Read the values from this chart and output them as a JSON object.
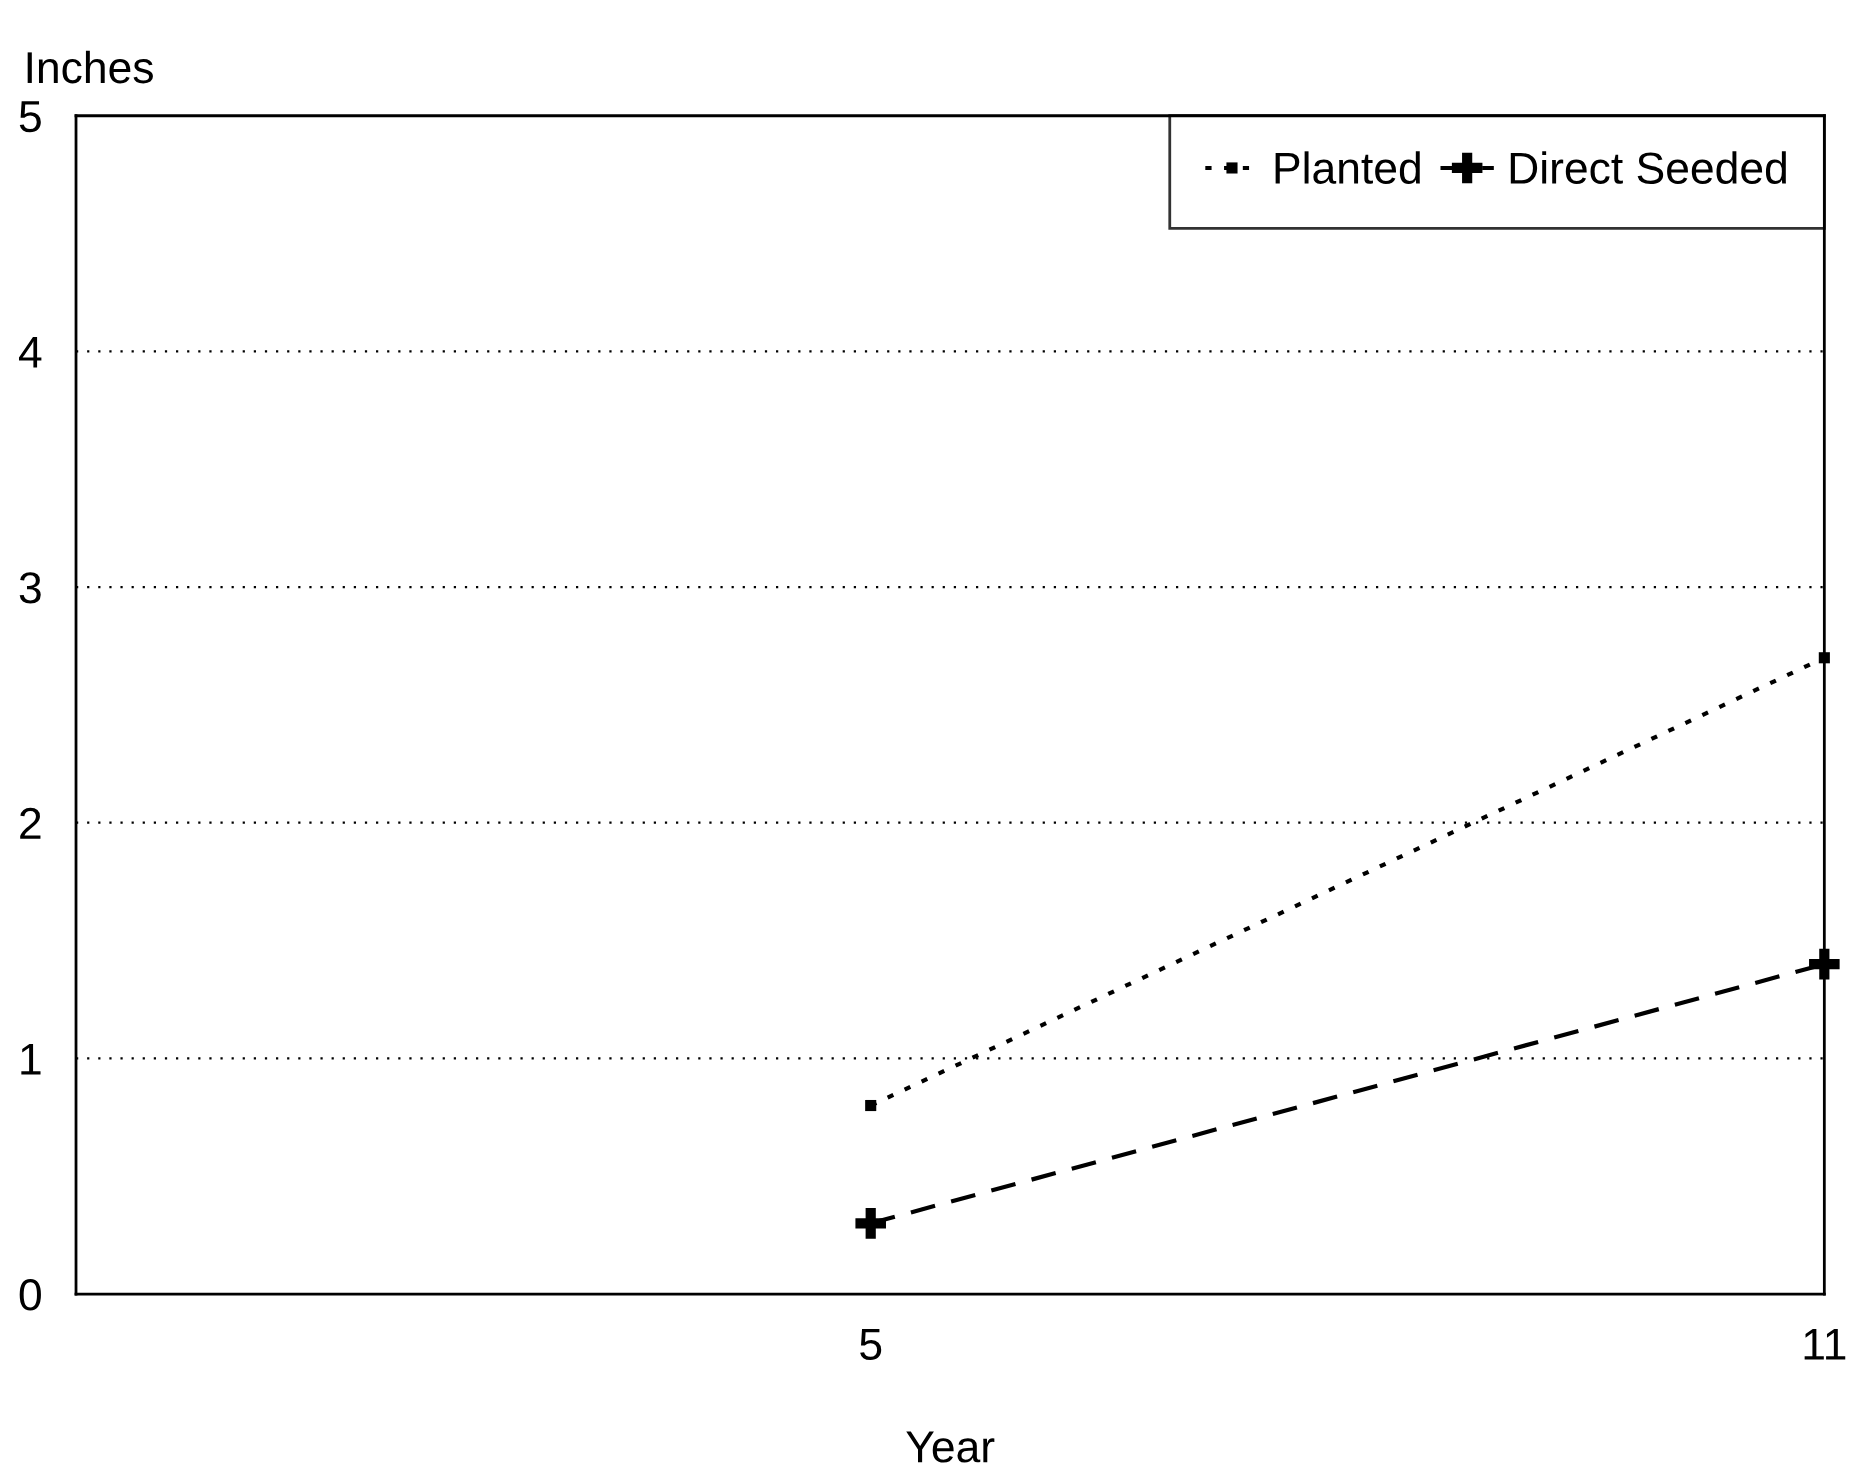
{
  "chart_data": {
    "type": "line",
    "xlabel": "Year",
    "ylabel": "Inches",
    "x": [
      5,
      11
    ],
    "series": [
      {
        "name": "Planted",
        "color": "#000000",
        "values": [
          0.8,
          2.7
        ],
        "marker": "square",
        "line_style": "dotted"
      },
      {
        "name": "Direct Seeded",
        "color": "#000000",
        "values": [
          0.3,
          1.4
        ],
        "marker": "cross",
        "line_style": "dashed"
      }
    ],
    "xlim": [
      0,
      11
    ],
    "xticks": [
      5,
      11
    ],
    "ylim": [
      0,
      5
    ],
    "yticks": [
      0,
      1,
      2,
      3,
      4,
      5
    ],
    "grid": "y",
    "legend": "top right"
  }
}
